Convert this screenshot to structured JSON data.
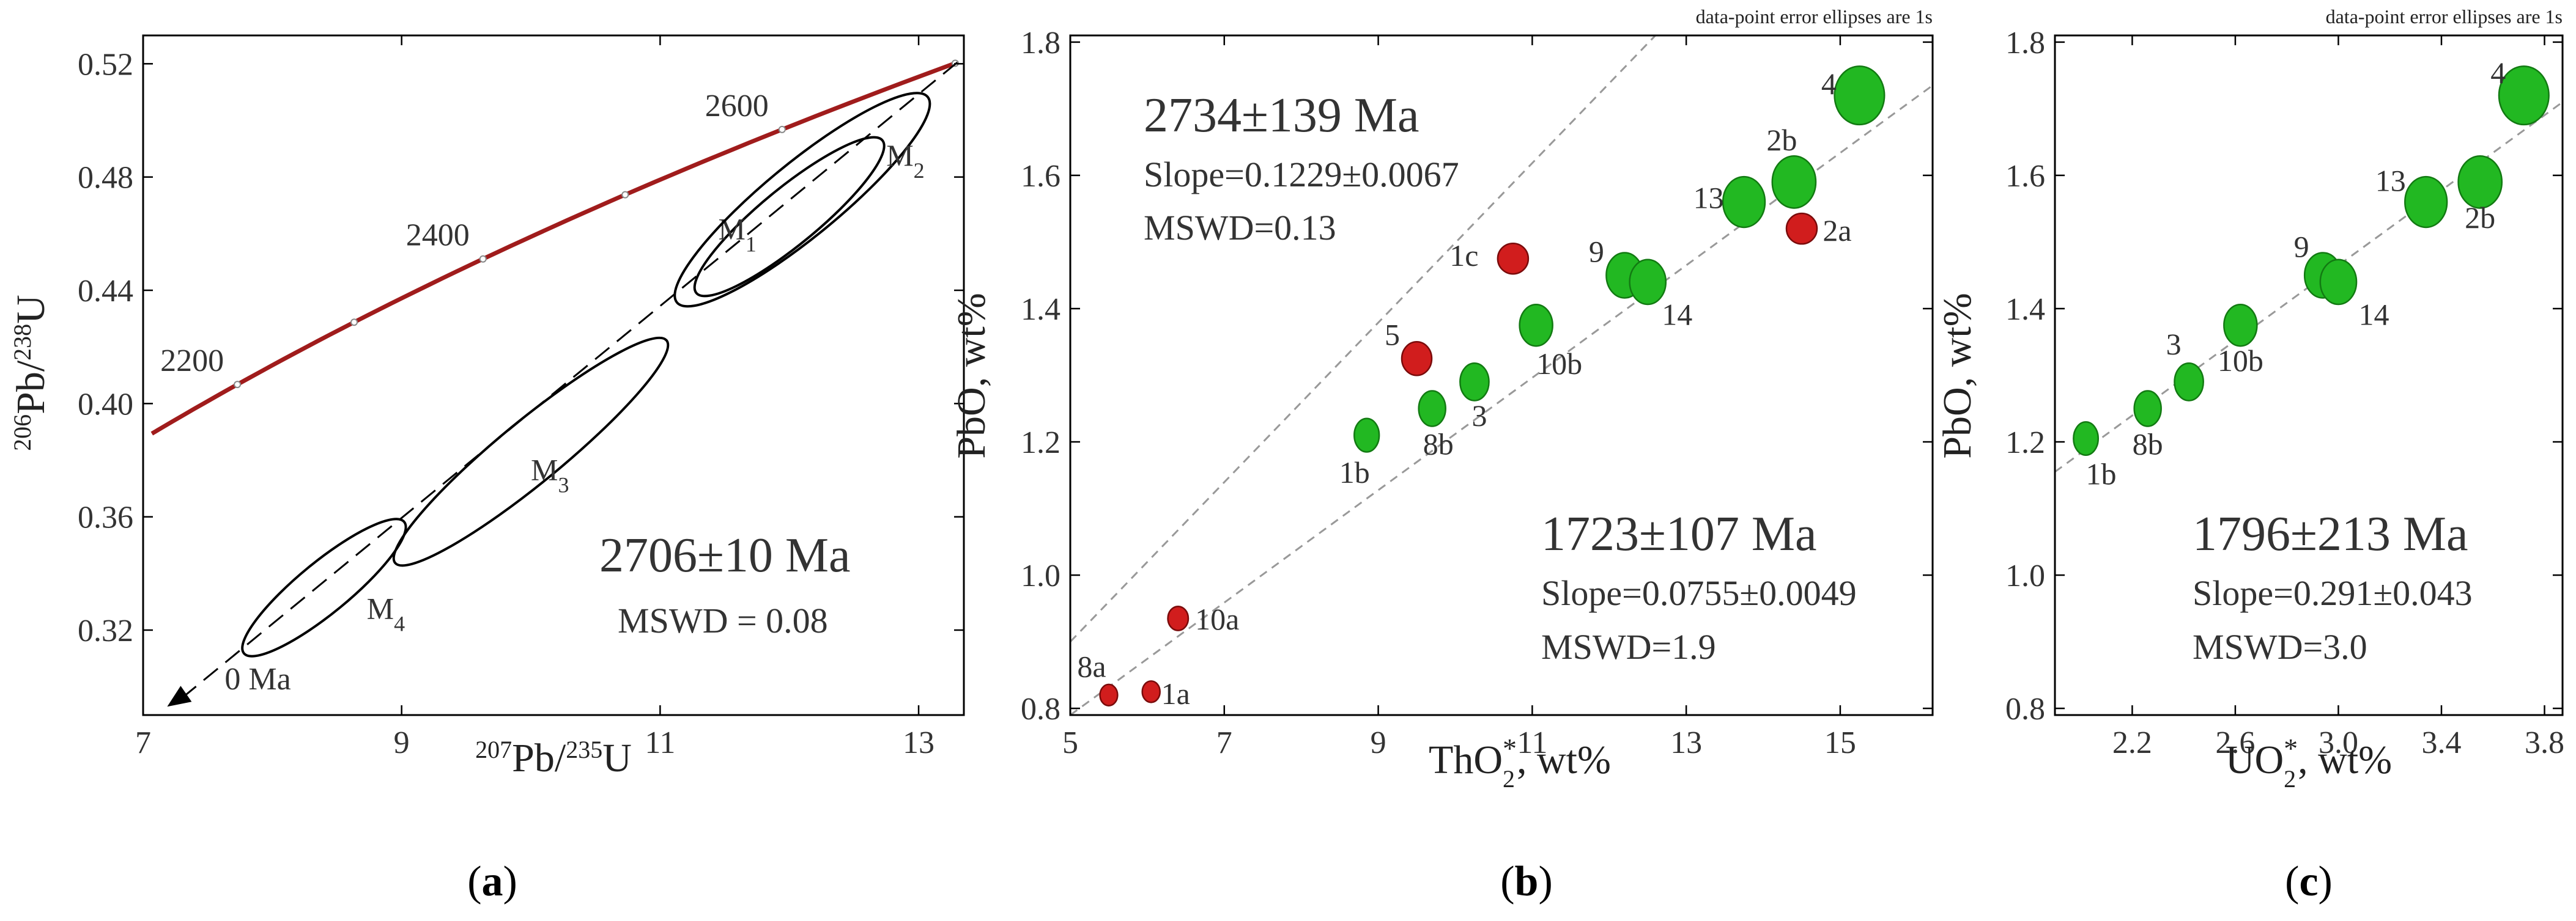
{
  "colors": {
    "concordia": "#a01c1c",
    "green": "#22b822",
    "green_stroke": "#127a12",
    "red": "#d11d1d",
    "red_stroke": "#7a0b0b",
    "trend": "#999999"
  },
  "chart_data": [
    {
      "id": "a",
      "type": "scatter",
      "panel_label": "(a)",
      "panel_letter": "a",
      "title": "",
      "xlabel_parts": [
        "207",
        "Pb/",
        "235",
        "U"
      ],
      "ylabel_parts": [
        "206",
        "Pb/",
        "238",
        "U"
      ],
      "xlim": [
        7,
        13.35
      ],
      "ylim": [
        0.29,
        0.53
      ],
      "xticks": [
        7,
        9,
        11,
        13
      ],
      "yticks": [
        0.32,
        0.36,
        0.4,
        0.44,
        0.48,
        0.52
      ],
      "ytick_labels": [
        "0.32",
        "0.36",
        "0.40",
        "0.44",
        "0.48",
        "0.52"
      ],
      "concordia_ages": [
        2200,
        2400,
        2600
      ],
      "concordia_age_labels": [
        "2200",
        "2400",
        "2600"
      ],
      "discordia": {
        "from": [
          7.3,
          0.296
        ],
        "to": [
          13.3,
          0.5205
        ],
        "origin_label": "0 Ma"
      },
      "ellipses": [
        {
          "name": "M",
          "sub": "1",
          "cx": 12.0,
          "cy": 0.466,
          "rx": 0.72,
          "ry": 0.01,
          "label_at": [
            11.45,
            0.458
          ]
        },
        {
          "name": "M",
          "sub": "2",
          "cx": 12.1,
          "cy": 0.472,
          "rx": 0.97,
          "ry": 0.013,
          "label_at": [
            12.75,
            0.484
          ]
        },
        {
          "name": "M",
          "sub": "3",
          "cx": 10.0,
          "cy": 0.383,
          "rx": 1.05,
          "ry": 0.011,
          "label_at": [
            10.0,
            0.373
          ]
        },
        {
          "name": "M",
          "sub": "4",
          "cx": 8.4,
          "cy": 0.335,
          "rx": 0.62,
          "ry": 0.009,
          "label_at": [
            8.73,
            0.324
          ]
        }
      ],
      "annotations": {
        "age": "2706±10 Ma",
        "mswd": "MSWD = 0.08"
      }
    },
    {
      "id": "b",
      "type": "scatter",
      "panel_label": "(b)",
      "panel_letter": "b",
      "title": "",
      "note": "data-point error ellipses are 1s",
      "xlabel_parts": [
        "ThO",
        "2",
        "*",
        ", wt%"
      ],
      "ylabel": "PbO, wt%",
      "xlim": [
        5,
        16.2
      ],
      "ylim": [
        0.79,
        1.81
      ],
      "xticks": [
        5,
        7,
        9,
        11,
        13,
        15
      ],
      "yticks": [
        0.8,
        1.0,
        1.2,
        1.4,
        1.6,
        1.8
      ],
      "ytick_labels": [
        "0.8",
        "1.0",
        "1.2",
        "1.4",
        "1.6",
        "1.8"
      ],
      "series": [
        {
          "name": "green",
          "points": [
            {
              "label": "1b",
              "x": 8.85,
              "y": 1.21
            },
            {
              "label": "8b",
              "x": 9.7,
              "y": 1.25
            },
            {
              "label": "3",
              "x": 10.25,
              "y": 1.29
            },
            {
              "label": "10b",
              "x": 11.05,
              "y": 1.375
            },
            {
              "label": "9",
              "x": 12.2,
              "y": 1.45
            },
            {
              "label": "14",
              "x": 12.5,
              "y": 1.44
            },
            {
              "label": "13",
              "x": 13.75,
              "y": 1.56
            },
            {
              "label": "2b",
              "x": 14.4,
              "y": 1.59
            },
            {
              "label": "4",
              "x": 15.25,
              "y": 1.72
            }
          ]
        },
        {
          "name": "red",
          "points": [
            {
              "label": "8a",
              "x": 5.5,
              "y": 0.82
            },
            {
              "label": "1a",
              "x": 6.05,
              "y": 0.825
            },
            {
              "label": "10a",
              "x": 6.4,
              "y": 0.935
            },
            {
              "label": "5",
              "x": 9.5,
              "y": 1.325
            },
            {
              "label": "1c",
              "x": 10.75,
              "y": 1.475
            },
            {
              "label": "2a",
              "x": 14.5,
              "y": 1.52
            }
          ]
        }
      ],
      "trend_lines": [
        {
          "from": [
            5,
            0.9
          ],
          "to": [
            12.6,
            1.81
          ]
        },
        {
          "from": [
            5,
            0.79
          ],
          "to": [
            16.2,
            1.735
          ]
        }
      ],
      "annotations": {
        "upper_age": "2734±139 Ma",
        "upper_slope": "Slope=0.1229±0.0067",
        "upper_mswd": "MSWD=0.13",
        "lower_age": "1723±107 Ma",
        "lower_slope": "Slope=0.0755±0.0049",
        "lower_mswd": "MSWD=1.9"
      }
    },
    {
      "id": "c",
      "type": "scatter",
      "panel_label": "(c)",
      "panel_letter": "c",
      "title": "",
      "note": "data-point error ellipses are 1s",
      "xlabel_parts": [
        "UO",
        "2",
        "*",
        ", wt%"
      ],
      "ylabel": "PbO, wt%",
      "xlim": [
        1.9,
        3.87
      ],
      "ylim": [
        0.79,
        1.81
      ],
      "xticks": [
        2.2,
        2.6,
        3.0,
        3.4,
        3.8
      ],
      "xtick_labels": [
        "2.2",
        "2.6",
        "3.0",
        "3.4",
        "3.8"
      ],
      "yticks": [
        0.8,
        1.0,
        1.2,
        1.4,
        1.6,
        1.8
      ],
      "ytick_labels": [
        "0.8",
        "1.0",
        "1.2",
        "1.4",
        "1.6",
        "1.8"
      ],
      "series": [
        {
          "name": "green",
          "points": [
            {
              "label": "1b",
              "x": 2.02,
              "y": 1.205
            },
            {
              "label": "8b",
              "x": 2.26,
              "y": 1.25
            },
            {
              "label": "3",
              "x": 2.42,
              "y": 1.29
            },
            {
              "label": "10b",
              "x": 2.62,
              "y": 1.375
            },
            {
              "label": "9",
              "x": 2.94,
              "y": 1.45
            },
            {
              "label": "14",
              "x": 3.0,
              "y": 1.44
            },
            {
              "label": "13",
              "x": 3.34,
              "y": 1.56
            },
            {
              "label": "2b",
              "x": 3.55,
              "y": 1.59
            },
            {
              "label": "4",
              "x": 3.72,
              "y": 1.72
            }
          ]
        }
      ],
      "trend_lines": [
        {
          "from": [
            1.9,
            1.155
          ],
          "to": [
            3.87,
            1.71
          ]
        }
      ],
      "annotations": {
        "age": "1796±213 Ma",
        "slope": "Slope=0.291±0.043",
        "mswd": "MSWD=3.0"
      }
    }
  ]
}
